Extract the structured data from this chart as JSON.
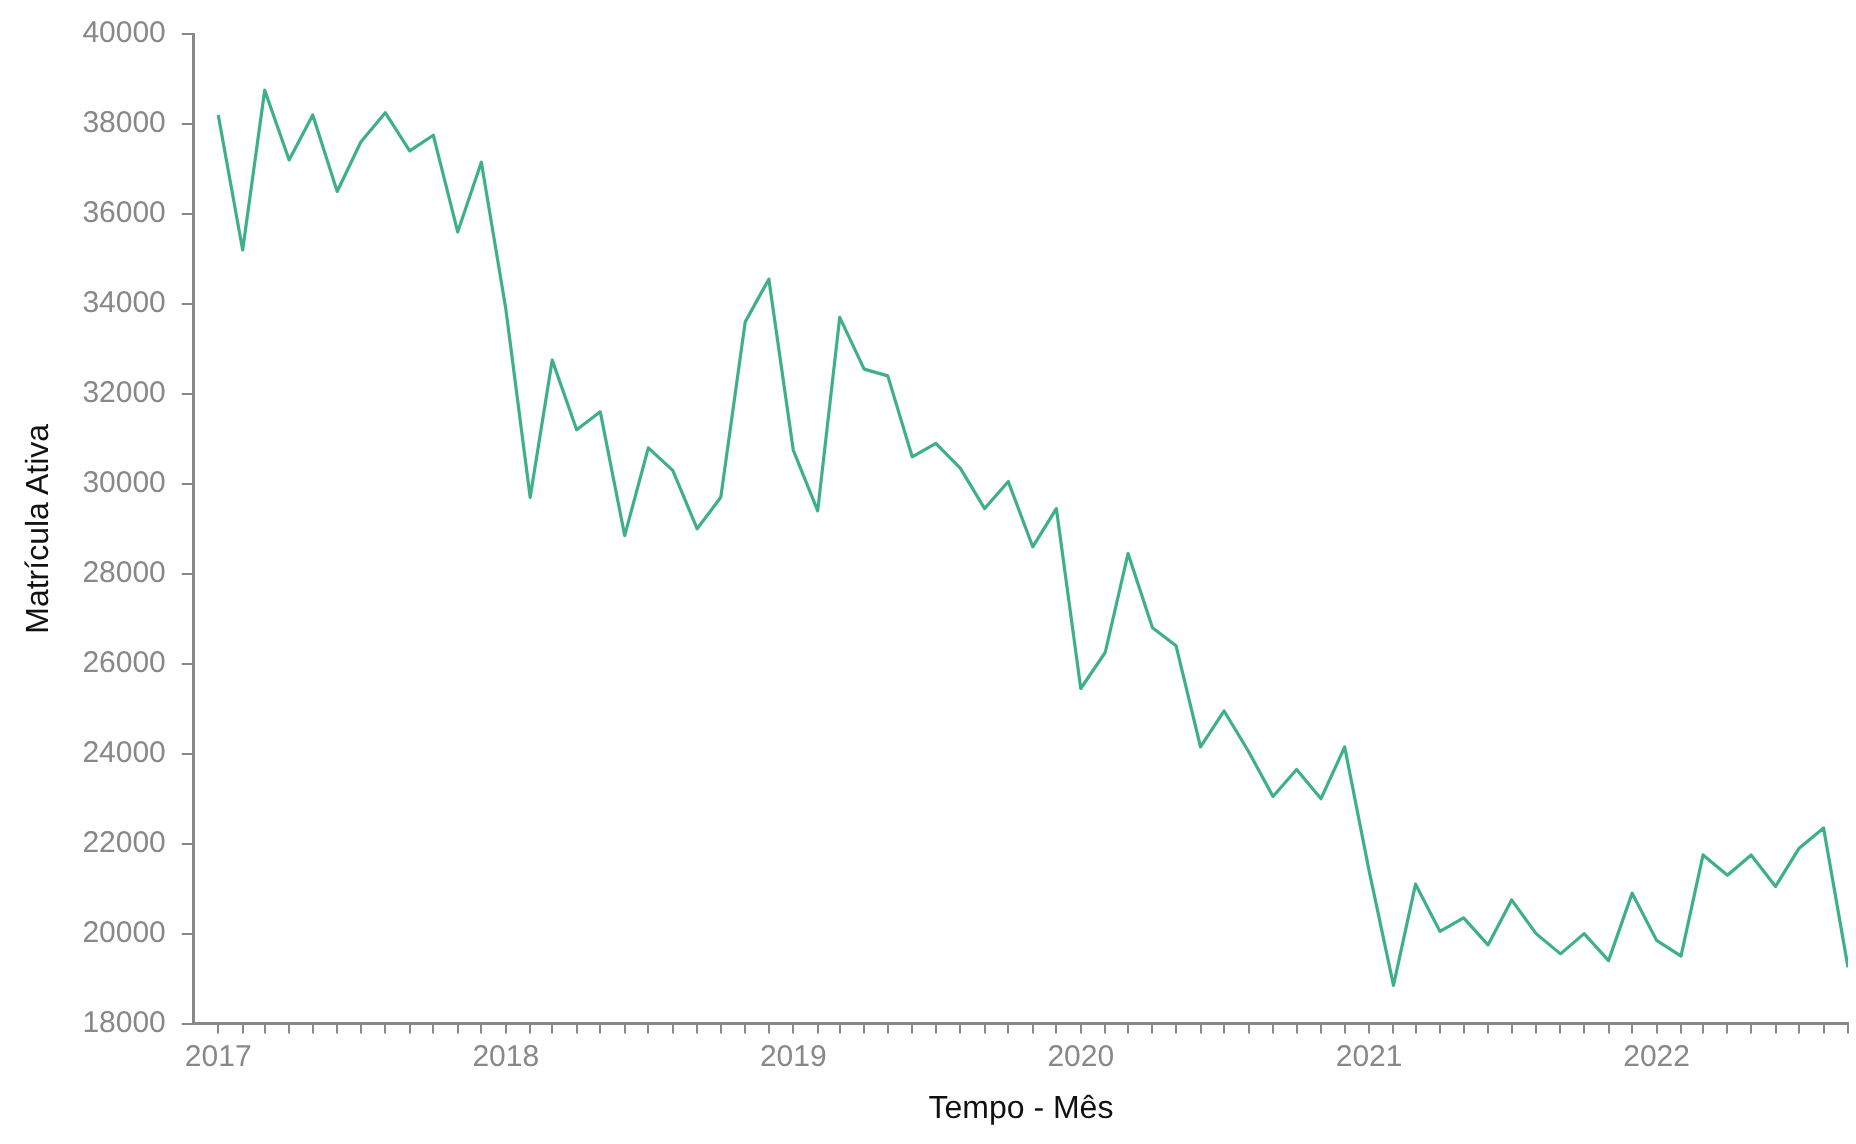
{
  "chart_data": {
    "type": "line",
    "xlabel": "Tempo - Mês",
    "ylabel": "Matrícula Ativa",
    "grid": false,
    "legend": false,
    "marker": "none",
    "line_style": "solid",
    "x": [
      "2017-01",
      "2017-02",
      "2017-03",
      "2017-04",
      "2017-05",
      "2017-06",
      "2017-07",
      "2017-08",
      "2017-09",
      "2017-10",
      "2017-11",
      "2017-12",
      "2018-01",
      "2018-02",
      "2018-03",
      "2018-04",
      "2018-05",
      "2018-06",
      "2018-07",
      "2018-08",
      "2018-09",
      "2018-10",
      "2018-11",
      "2018-12",
      "2019-01",
      "2019-02",
      "2019-03",
      "2019-04",
      "2019-05",
      "2019-06",
      "2019-07",
      "2019-08",
      "2019-09",
      "2019-10",
      "2019-11",
      "2019-12",
      "2020-01",
      "2020-02",
      "2020-03",
      "2020-04",
      "2020-05",
      "2020-06",
      "2020-07",
      "2020-08",
      "2020-09",
      "2020-10",
      "2020-11",
      "2020-12",
      "2021-01",
      "2021-02",
      "2021-03",
      "2021-04",
      "2021-05",
      "2021-06",
      "2021-07",
      "2021-08",
      "2021-09",
      "2021-10",
      "2021-11",
      "2021-12",
      "2022-01",
      "2022-02",
      "2022-03",
      "2022-04",
      "2022-05",
      "2022-06",
      "2022-07",
      "2022-08",
      "2022-09"
    ],
    "series": [
      {
        "color": "#3daf8a",
        "values": [
          38200,
          35200,
          38750,
          37200,
          38200,
          36500,
          37600,
          38250,
          37400,
          37750,
          35600,
          37150,
          33900,
          29700,
          32750,
          31200,
          31600,
          28850,
          30800,
          30300,
          29000,
          29700,
          33600,
          34550,
          30750,
          29400,
          33700,
          32550,
          32400,
          30600,
          30900,
          30350,
          29450,
          30050,
          28600,
          29450,
          25450,
          26250,
          28450,
          26800,
          26400,
          24150,
          24950,
          24050,
          23050,
          23650,
          23000,
          24150,
          21400,
          18850,
          21100,
          20050,
          20350,
          19750,
          20750,
          20000,
          19550,
          20000,
          19400,
          20900,
          19850,
          19500,
          21750,
          21300,
          21750,
          21050,
          21900,
          22350,
          19250
        ]
      }
    ],
    "xlim": [
      "2016-12",
      "2022-09"
    ],
    "xticks": [
      {
        "value": "2017-01",
        "label": "2017"
      },
      {
        "value": "2017-02",
        "label": null
      },
      {
        "value": "2017-03",
        "label": null
      },
      {
        "value": "2017-04",
        "label": null
      },
      {
        "value": "2017-05",
        "label": null
      },
      {
        "value": "2017-06",
        "label": null
      },
      {
        "value": "2017-07",
        "label": null
      },
      {
        "value": "2017-08",
        "label": null
      },
      {
        "value": "2017-09",
        "label": null
      },
      {
        "value": "2017-10",
        "label": null
      },
      {
        "value": "2017-11",
        "label": null
      },
      {
        "value": "2017-12",
        "label": null
      },
      {
        "value": "2018-01",
        "label": "2018"
      },
      {
        "value": "2018-02",
        "label": null
      },
      {
        "value": "2018-03",
        "label": null
      },
      {
        "value": "2018-04",
        "label": null
      },
      {
        "value": "2018-05",
        "label": null
      },
      {
        "value": "2018-06",
        "label": null
      },
      {
        "value": "2018-07",
        "label": null
      },
      {
        "value": "2018-08",
        "label": null
      },
      {
        "value": "2018-09",
        "label": null
      },
      {
        "value": "2018-10",
        "label": null
      },
      {
        "value": "2018-11",
        "label": null
      },
      {
        "value": "2018-12",
        "label": null
      },
      {
        "value": "2019-01",
        "label": "2019"
      },
      {
        "value": "2019-02",
        "label": null
      },
      {
        "value": "2019-03",
        "label": null
      },
      {
        "value": "2019-04",
        "label": null
      },
      {
        "value": "2019-05",
        "label": null
      },
      {
        "value": "2019-06",
        "label": null
      },
      {
        "value": "2019-07",
        "label": null
      },
      {
        "value": "2019-08",
        "label": null
      },
      {
        "value": "2019-09",
        "label": null
      },
      {
        "value": "2019-10",
        "label": null
      },
      {
        "value": "2019-11",
        "label": null
      },
      {
        "value": "2019-12",
        "label": null
      },
      {
        "value": "2020-01",
        "label": "2020"
      },
      {
        "value": "2020-02",
        "label": null
      },
      {
        "value": "2020-03",
        "label": null
      },
      {
        "value": "2020-04",
        "label": null
      },
      {
        "value": "2020-05",
        "label": null
      },
      {
        "value": "2020-06",
        "label": null
      },
      {
        "value": "2020-07",
        "label": null
      },
      {
        "value": "2020-08",
        "label": null
      },
      {
        "value": "2020-09",
        "label": null
      },
      {
        "value": "2020-10",
        "label": null
      },
      {
        "value": "2020-11",
        "label": null
      },
      {
        "value": "2020-12",
        "label": null
      },
      {
        "value": "2021-01",
        "label": "2021"
      },
      {
        "value": "2021-02",
        "label": null
      },
      {
        "value": "2021-03",
        "label": null
      },
      {
        "value": "2021-04",
        "label": null
      },
      {
        "value": "2021-05",
        "label": null
      },
      {
        "value": "2021-06",
        "label": null
      },
      {
        "value": "2021-07",
        "label": null
      },
      {
        "value": "2021-08",
        "label": null
      },
      {
        "value": "2021-09",
        "label": null
      },
      {
        "value": "2021-10",
        "label": null
      },
      {
        "value": "2021-11",
        "label": null
      },
      {
        "value": "2021-12",
        "label": null
      },
      {
        "value": "2022-01",
        "label": "2022"
      },
      {
        "value": "2022-02",
        "label": null
      },
      {
        "value": "2022-03",
        "label": null
      },
      {
        "value": "2022-04",
        "label": null
      },
      {
        "value": "2022-05",
        "label": null
      },
      {
        "value": "2022-06",
        "label": null
      },
      {
        "value": "2022-07",
        "label": null
      },
      {
        "value": "2022-08",
        "label": null
      },
      {
        "value": "2022-09",
        "label": null
      }
    ],
    "ylim": [
      18000,
      40000
    ],
    "yticks": [
      18000,
      20000,
      22000,
      24000,
      26000,
      28000,
      30000,
      32000,
      34000,
      36000,
      38000,
      40000
    ]
  }
}
